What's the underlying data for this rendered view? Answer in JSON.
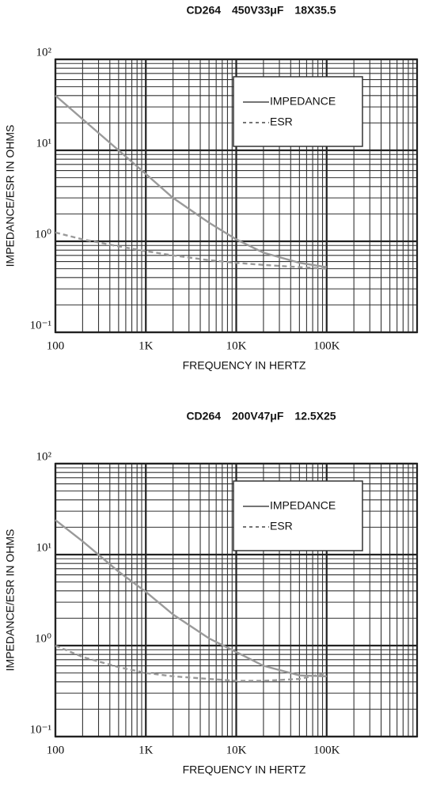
{
  "chart_data": [
    {
      "type": "line",
      "title": "CD264　450V33μF　18X35.5",
      "x_label": "FREQUENCY  IN  HERTZ",
      "y_label": "IMPEDANCE/ESR  IN  OHMS",
      "x_log": true,
      "y_log": true,
      "grid": true,
      "legend": "upper right",
      "xlim": [
        100,
        1000000
      ],
      "ylim": [
        0.1,
        100
      ],
      "xticks": [
        100,
        {
          "value": 1000,
          "label": "1K"
        },
        {
          "value": 10000,
          "label": "10K"
        },
        {
          "value": 100000,
          "label": "100K"
        }
      ],
      "yticks": [
        {
          "value": 0.1,
          "label": "10⁻¹"
        },
        {
          "value": 1,
          "label": "10⁰"
        },
        {
          "value": 10,
          "label": "10¹"
        },
        {
          "value": 100,
          "label": "10²"
        }
      ],
      "x": [
        100,
        200,
        500,
        1000,
        2000,
        5000,
        10000,
        20000,
        50000,
        100000
      ],
      "series": [
        {
          "name": "IMPEDANCE",
          "color": "#9a9a9a",
          "line_style": "solid",
          "values": [
            40,
            22,
            10,
            5.5,
            3,
            1.6,
            1.05,
            0.75,
            0.58,
            0.52
          ]
        },
        {
          "name": "ESR",
          "color": "#9a9a9a",
          "line_style": "dashed",
          "values": [
            1.25,
            1.05,
            0.88,
            0.78,
            0.7,
            0.62,
            0.58,
            0.55,
            0.52,
            0.5
          ]
        }
      ]
    },
    {
      "type": "line",
      "title": "CD264　200V47μF　12.5X25",
      "x_label": "FREQUENCY  IN  HERTZ",
      "y_label": "IMPEDANCE/ESR  IN  OHMS",
      "x_log": true,
      "y_log": true,
      "grid": true,
      "legend": "upper right",
      "xlim": [
        100,
        1000000
      ],
      "ylim": [
        0.1,
        100
      ],
      "xticks": [
        100,
        {
          "value": 1000,
          "label": "1K"
        },
        {
          "value": 10000,
          "label": "10K"
        },
        {
          "value": 100000,
          "label": "100K"
        }
      ],
      "yticks": [
        {
          "value": 0.1,
          "label": "10⁻¹"
        },
        {
          "value": 1,
          "label": "10⁰"
        },
        {
          "value": 10,
          "label": "10¹"
        },
        {
          "value": 100,
          "label": "10²"
        }
      ],
      "x": [
        100,
        200,
        500,
        1000,
        2000,
        5000,
        10000,
        20000,
        50000,
        100000
      ],
      "series": [
        {
          "name": "IMPEDANCE",
          "color": "#9a9a9a",
          "line_style": "solid",
          "values": [
            24,
            14,
            6.5,
            3.9,
            2.2,
            1.2,
            0.85,
            0.6,
            0.47,
            0.46
          ]
        },
        {
          "name": "ESR",
          "color": "#9a9a9a",
          "line_style": "dashed",
          "values": [
            1.0,
            0.75,
            0.58,
            0.5,
            0.46,
            0.43,
            0.41,
            0.41,
            0.43,
            0.5
          ]
        }
      ]
    }
  ]
}
